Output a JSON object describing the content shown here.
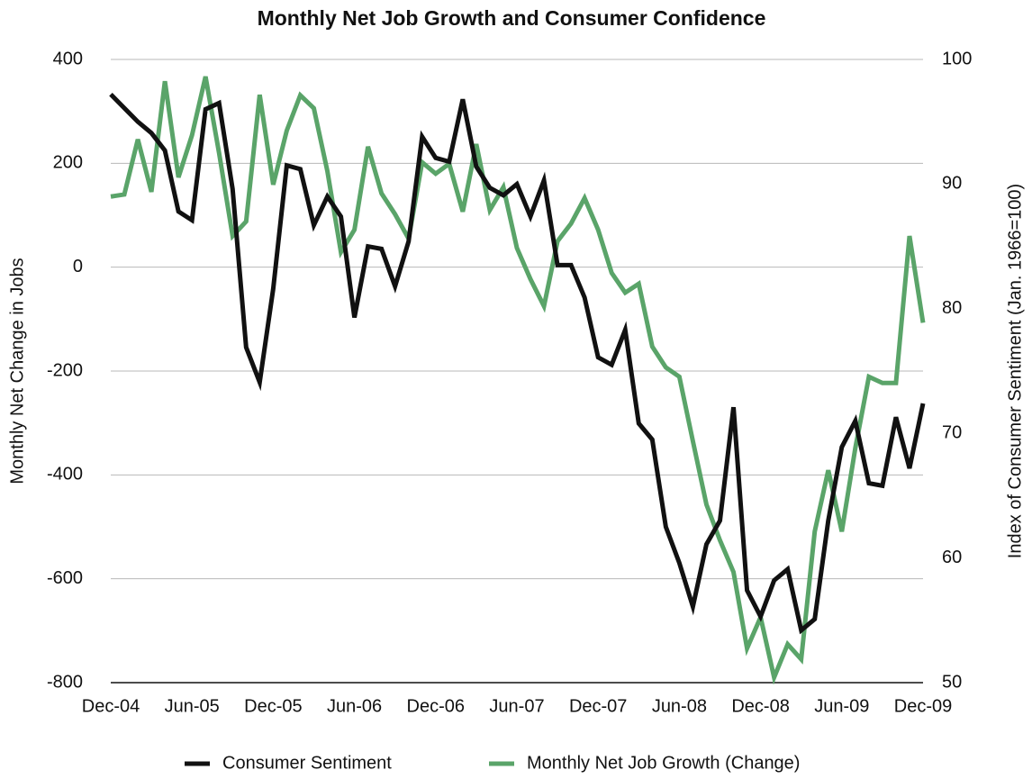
{
  "chart_data": {
    "type": "line",
    "title": "Monthly Net Job Growth and Consumer Confidence",
    "y_label": "Monthly Net Change in Jobs",
    "y2_label": "Index of Consumer Sentiment (Jan. 1966=100)",
    "categories": [
      "Dec-04",
      null,
      null,
      null,
      null,
      null,
      "Jun-05",
      null,
      null,
      null,
      null,
      null,
      "Dec-05",
      null,
      null,
      null,
      null,
      null,
      "Jun-06",
      null,
      null,
      null,
      null,
      null,
      "Dec-06",
      null,
      null,
      null,
      null,
      null,
      "Jun-07",
      null,
      null,
      null,
      null,
      null,
      "Dec-07",
      null,
      null,
      null,
      null,
      null,
      "Jun-08",
      null,
      null,
      null,
      null,
      null,
      "Dec-08",
      null,
      null,
      null,
      null,
      null,
      "Jun-09",
      null,
      null,
      null,
      null,
      null,
      "Dec-09"
    ],
    "ylim": [
      -800,
      400
    ],
    "yticks": [
      -800,
      -600,
      -400,
      -200,
      0,
      200,
      400
    ],
    "y2lim": [
      50,
      100
    ],
    "y2ticks": [
      50,
      60,
      70,
      80,
      90,
      100
    ],
    "grid": true,
    "legend": "bottom",
    "series": [
      {
        "name": "Consumer Sentiment",
        "color": "#111111",
        "axis": "y2",
        "values": [
          97.2,
          96.1,
          95.0,
          94.1,
          92.7,
          87.8,
          87.1,
          96.0,
          96.5,
          89.6,
          76.9,
          74.1,
          81.6,
          91.5,
          91.2,
          86.7,
          89.0,
          87.4,
          79.3,
          85.0,
          84.8,
          81.8,
          85.4,
          93.8,
          92.1,
          91.8,
          96.8,
          91.4,
          89.7,
          89.1,
          90.0,
          87.4,
          90.3,
          83.5,
          83.5,
          80.9,
          76.1,
          75.5,
          78.3,
          70.8,
          69.5,
          62.5,
          59.6,
          56.1,
          61.1,
          63.0,
          72.1,
          57.4,
          55.3,
          58.2,
          59.1,
          54.2,
          55.1,
          63.0,
          68.9,
          71.0,
          66.0,
          65.8,
          71.3,
          67.2,
          72.4
        ]
      },
      {
        "name": "Monthly Net Job Growth (Change)",
        "color": "#5aa469",
        "axis": "y",
        "values": [
          136,
          140,
          246,
          145,
          358,
          173,
          254,
          367,
          220,
          60,
          88,
          332,
          159,
          263,
          331,
          306,
          185,
          29,
          72,
          232,
          142,
          102,
          55,
          202,
          180,
          199,
          107,
          237,
          110,
          154,
          37,
          -23,
          -75,
          50,
          84,
          133,
          72,
          -11,
          -49,
          -32,
          -153,
          -193,
          -211,
          -335,
          -457,
          -526,
          -587,
          -734,
          -674,
          -790,
          -726,
          -755,
          -509,
          -391,
          -509,
          -348,
          -211,
          -223,
          -223,
          60,
          -107
        ]
      }
    ]
  }
}
